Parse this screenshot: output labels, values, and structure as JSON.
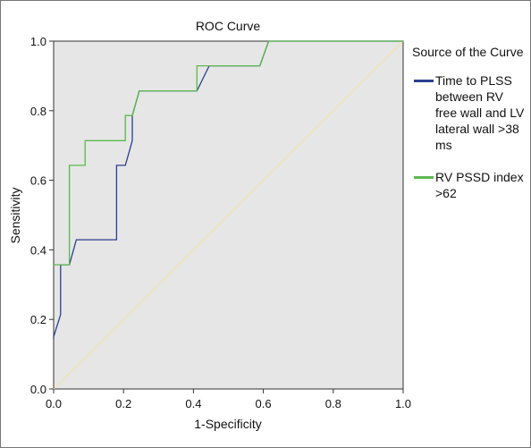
{
  "chart_data": {
    "type": "line",
    "title": "ROC Curve",
    "xlabel": "1-Specificity",
    "ylabel": "Sensitivity",
    "xlim": [
      0,
      1
    ],
    "ylim": [
      0,
      1
    ],
    "x_ticks": [
      "0.0",
      "0.2",
      "0.4",
      "0.6",
      "0.8",
      "1.0"
    ],
    "y_ticks": [
      "0.0",
      "0.2",
      "0.4",
      "0.6",
      "0.8",
      "1.0"
    ],
    "grid": false,
    "legend": {
      "title": "Source of the Curve",
      "placement": "right"
    },
    "plot_background": "#e6e6e6",
    "series": [
      {
        "name": "Time to PLSS between RV free wall and LV lateral wall >38 ms",
        "color": "#2a3f8f",
        "points": [
          [
            0,
            0.143
          ],
          [
            0,
            0.15
          ],
          [
            0.02,
            0.214
          ],
          [
            0.02,
            0.357
          ],
          [
            0.045,
            0.357
          ],
          [
            0.065,
            0.429
          ],
          [
            0.18,
            0.429
          ],
          [
            0.18,
            0.643
          ],
          [
            0.205,
            0.643
          ],
          [
            0.225,
            0.714
          ],
          [
            0.225,
            0.786
          ],
          [
            0.245,
            0.857
          ],
          [
            0.41,
            0.857
          ],
          [
            0.445,
            0.929
          ],
          [
            0.59,
            0.929
          ],
          [
            0.615,
            1.0
          ],
          [
            1.0,
            1.0
          ]
        ]
      },
      {
        "name": "RV PSSD index >62",
        "color": "#5cb84f",
        "points": [
          [
            0,
            0.357
          ],
          [
            0.045,
            0.357
          ],
          [
            0.045,
            0.429
          ],
          [
            0.045,
            0.643
          ],
          [
            0.09,
            0.643
          ],
          [
            0.09,
            0.714
          ],
          [
            0.205,
            0.714
          ],
          [
            0.205,
            0.786
          ],
          [
            0.225,
            0.786
          ],
          [
            0.245,
            0.857
          ],
          [
            0.41,
            0.857
          ],
          [
            0.41,
            0.929
          ],
          [
            0.59,
            0.929
          ],
          [
            0.615,
            1.0
          ],
          [
            1.0,
            1.0
          ]
        ]
      },
      {
        "name": "",
        "color": "#f3e3a0",
        "points": [
          [
            0,
            0
          ],
          [
            1,
            1
          ]
        ]
      }
    ]
  }
}
